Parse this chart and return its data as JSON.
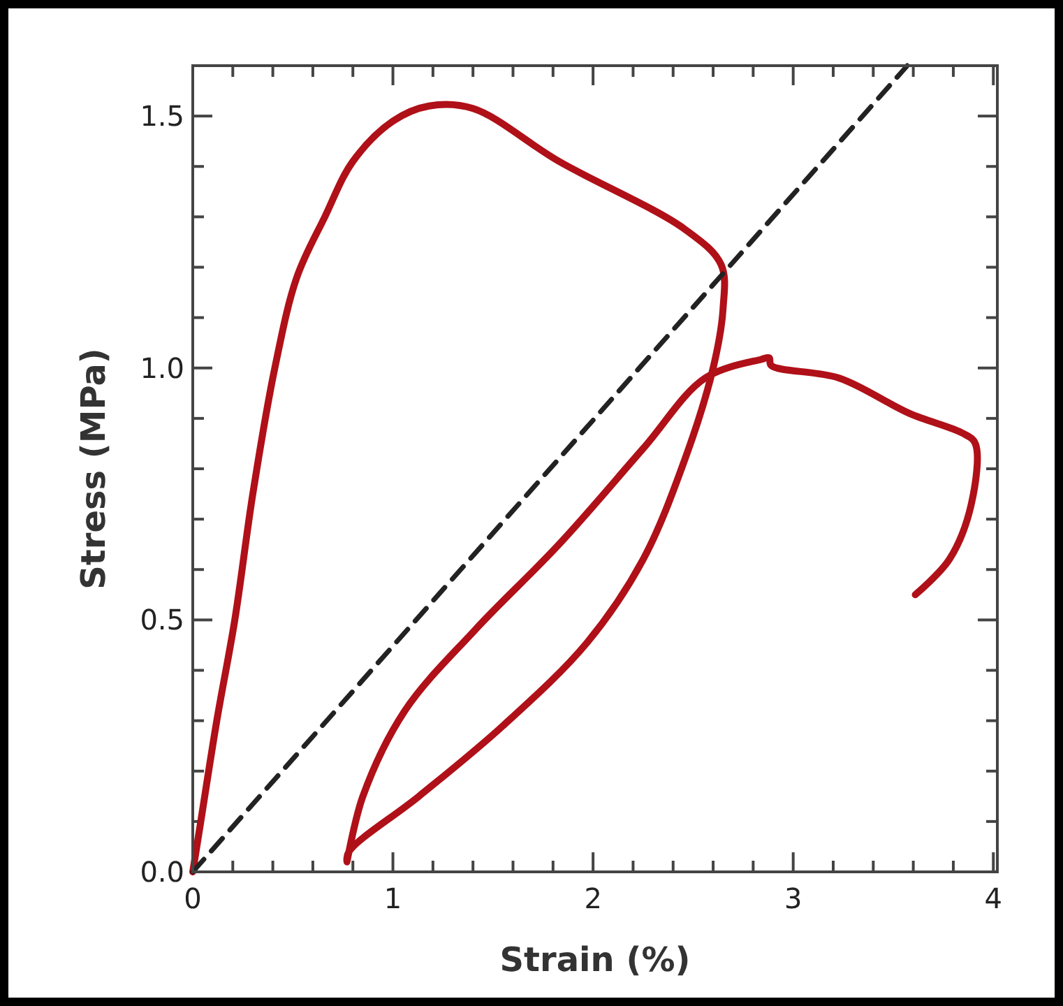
{
  "chart_data": {
    "type": "line",
    "xlabel": "Strain (%)",
    "ylabel": "Stress (MPa)",
    "xlim": [
      0,
      4.02
    ],
    "ylim": [
      0,
      1.6
    ],
    "xticks": [
      0,
      {
        "value": 0.2,
        "label": null
      },
      {
        "value": 0.4,
        "label": null
      },
      {
        "value": 0.6,
        "label": null
      },
      {
        "value": 0.8,
        "label": null
      },
      1,
      {
        "value": 1.2,
        "label": null
      },
      {
        "value": 1.4,
        "label": null
      },
      {
        "value": 1.6,
        "label": null
      },
      {
        "value": 1.8,
        "label": null
      },
      2,
      {
        "value": 2.2,
        "label": null
      },
      {
        "value": 2.4,
        "label": null
      },
      {
        "value": 2.6,
        "label": null
      },
      {
        "value": 2.8,
        "label": null
      },
      3,
      {
        "value": 3.2,
        "label": null
      },
      {
        "value": 3.4,
        "label": null
      },
      {
        "value": 3.6,
        "label": null
      },
      {
        "value": 3.8,
        "label": null
      },
      4
    ],
    "yticks": [
      {
        "value": 0,
        "label": "0.0"
      },
      {
        "value": 0.1,
        "label": null
      },
      {
        "value": 0.2,
        "label": null
      },
      {
        "value": 0.3,
        "label": null
      },
      {
        "value": 0.4,
        "label": null
      },
      {
        "value": 0.5,
        "label": "0.5"
      },
      {
        "value": 0.6,
        "label": null
      },
      {
        "value": 0.7,
        "label": null
      },
      {
        "value": 0.8,
        "label": null
      },
      {
        "value": 0.9,
        "label": null
      },
      {
        "value": 1.0,
        "label": "1.0"
      },
      {
        "value": 1.1,
        "label": null
      },
      {
        "value": 1.2,
        "label": null
      },
      {
        "value": 1.3,
        "label": null
      },
      {
        "value": 1.4,
        "label": null
      },
      {
        "value": 1.5,
        "label": "1.5"
      }
    ],
    "grid": false,
    "series": [
      {
        "color": "#b01018",
        "line_style": "solid",
        "x": [
          0,
          0.04,
          0.12,
          0.21,
          0.3,
          0.41,
          0.52,
          0.66,
          0.8,
          1.0,
          1.18,
          1.4,
          1.83,
          2.46,
          2.64,
          2.65,
          2.6,
          2.46,
          2.25,
          1.97,
          1.55,
          1.13,
          0.78,
          0.77,
          0.85,
          1.06,
          1.41,
          1.83,
          2.25,
          2.56,
          2.84,
          2.88,
          2.89,
          3.23,
          3.58,
          3.85,
          3.91,
          3.89,
          3.78,
          3.61
        ],
        "values": [
          0,
          0.1,
          0.3,
          0.5,
          0.75,
          1.0,
          1.18,
          1.3,
          1.41,
          1.49,
          1.52,
          1.515,
          1.41,
          1.275,
          1.205,
          1.12,
          1.0,
          0.82,
          0.62,
          0.455,
          0.29,
          0.15,
          0.04,
          0.02,
          0.15,
          0.32,
          0.48,
          0.65,
          0.84,
          0.98,
          1.017,
          1.02,
          1.005,
          0.98,
          0.91,
          0.87,
          0.85,
          0.73,
          0.62,
          0.55
        ]
      },
      {
        "color": "#222222",
        "line_style": "dashed",
        "x": [
          0,
          3.57
        ],
        "values": [
          0,
          1.6
        ]
      }
    ]
  }
}
